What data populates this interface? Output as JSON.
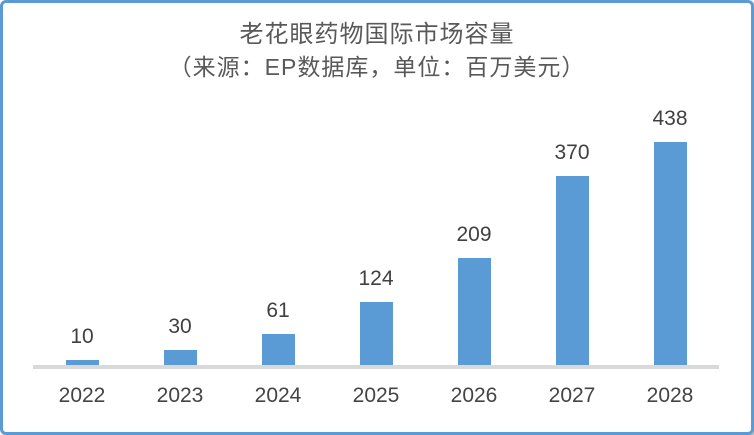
{
  "chart_data": {
    "type": "bar",
    "title": "老花眼药物国际市场容量",
    "subtitle": "（来源：EP数据库，单位：百万美元）",
    "categories": [
      "2022",
      "2023",
      "2024",
      "2025",
      "2026",
      "2027",
      "2028"
    ],
    "values": [
      10,
      30,
      61,
      124,
      209,
      370,
      438
    ],
    "xlabel": "",
    "ylabel": "",
    "ylim": [
      0,
      460
    ],
    "grid": false,
    "legend": "none",
    "data_labels_position": "above-bars",
    "bar_color": "#5B9BD5",
    "axis_line_color": "#D9D9D9",
    "title_color": "#595959",
    "label_color": "#404040",
    "border_color": "#5B9BD5"
  }
}
